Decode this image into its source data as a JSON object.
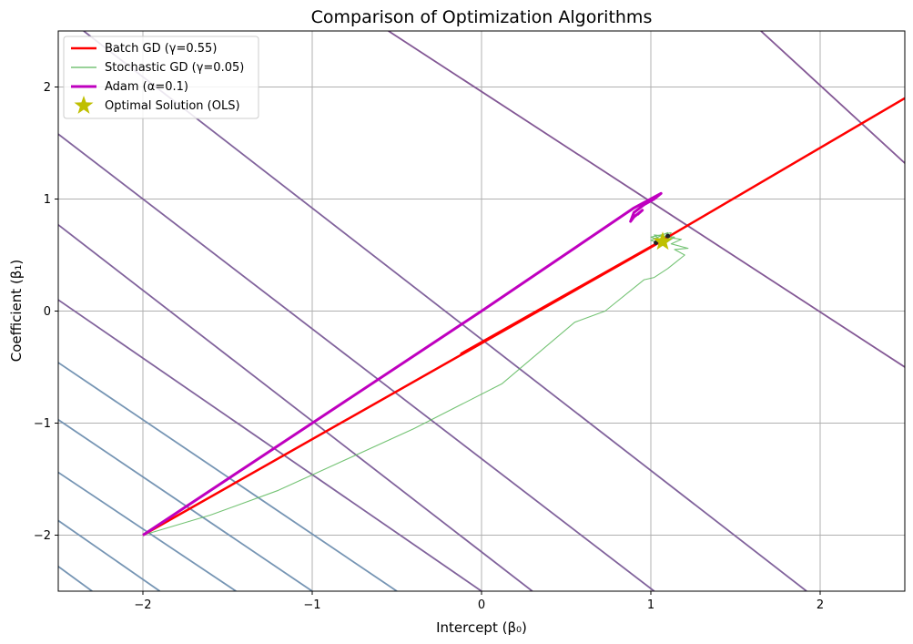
{
  "chart_data": {
    "type": "line",
    "title": "Comparison of Optimization Algorithms",
    "xlabel": "Intercept (β₀)",
    "ylabel": "Coefficient (β₁)",
    "xlim": [
      -2.5,
      2.5
    ],
    "ylim": [
      -2.5,
      2.5
    ],
    "xticks": [
      -2,
      -1,
      0,
      1,
      2
    ],
    "yticks": [
      -2,
      -1,
      0,
      1,
      2
    ],
    "xtick_labels": [
      "−2",
      "−1",
      "0",
      "1",
      "2"
    ],
    "ytick_labels": [
      "−2",
      "−1",
      "0",
      "1",
      "2"
    ],
    "grid": true,
    "legend_position": "upper-left",
    "contours": {
      "colors": [
        "#6f8fb0",
        "#7a5b97",
        "#7c4f8f"
      ],
      "lines": [
        {
          "level": "low-1",
          "points": [
            [
              -2.5,
              -2.28
            ],
            [
              -2.3,
              -2.5
            ]
          ]
        },
        {
          "level": "low-2",
          "points": [
            [
              -2.5,
              -1.87
            ],
            [
              -1.9,
              -2.5
            ]
          ]
        },
        {
          "level": "low-3",
          "points": [
            [
              -2.5,
              -1.44
            ],
            [
              -1.45,
              -2.5
            ]
          ]
        },
        {
          "level": "low-4",
          "points": [
            [
              -2.5,
              -0.97
            ],
            [
              -1.0,
              -2.5
            ]
          ]
        },
        {
          "level": "low-5",
          "points": [
            [
              -2.5,
              -0.46
            ],
            [
              -0.5,
              -2.5
            ]
          ]
        },
        {
          "level": "mid-1",
          "points": [
            [
              -2.5,
              0.1
            ],
            [
              0.0,
              -2.5
            ]
          ]
        },
        {
          "level": "mid-2",
          "points": [
            [
              -2.5,
              0.77
            ],
            [
              0.3,
              -2.5
            ]
          ]
        },
        {
          "level": "mid-3",
          "points": [
            [
              -2.5,
              1.58
            ],
            [
              1.02,
              -2.5
            ]
          ]
        },
        {
          "level": "mid-4",
          "points": [
            [
              -2.35,
              2.5
            ],
            [
              1.92,
              -2.5
            ]
          ]
        },
        {
          "level": "high-1",
          "points": [
            [
              -0.55,
              2.5
            ],
            [
              2.5,
              -0.5
            ]
          ]
        },
        {
          "level": "high-2",
          "points": [
            [
              1.65,
              2.5
            ],
            [
              2.5,
              1.32
            ]
          ]
        }
      ]
    },
    "series": [
      {
        "name": "Batch GD (γ=0.55)",
        "color": "#ff0000",
        "points": [
          [
            -2.0,
            -2.0
          ],
          [
            1.06,
            0.62
          ],
          [
            -0.12,
            -0.38
          ],
          [
            1.1,
            0.66
          ],
          [
            2.5,
            1.9
          ]
        ]
      },
      {
        "name": "Stochastic GD (γ=0.05)",
        "color": "#5cb85c",
        "points": [
          [
            -2.0,
            -2.0
          ],
          [
            -1.6,
            -1.82
          ],
          [
            -1.2,
            -1.6
          ],
          [
            -0.4,
            -1.05
          ],
          [
            0.12,
            -0.65
          ],
          [
            0.55,
            -0.1
          ],
          [
            0.73,
            0.0
          ],
          [
            0.96,
            0.28
          ],
          [
            1.02,
            0.3
          ],
          [
            1.1,
            0.38
          ],
          [
            1.15,
            0.44
          ],
          [
            1.2,
            0.5
          ],
          [
            1.14,
            0.55
          ],
          [
            1.22,
            0.56
          ],
          [
            1.12,
            0.6
          ],
          [
            1.18,
            0.64
          ],
          [
            1.05,
            0.67
          ],
          [
            1.1,
            0.7
          ],
          [
            1.0,
            0.63
          ],
          [
            1.08,
            0.6
          ],
          [
            1.02,
            0.68
          ],
          [
            1.14,
            0.66
          ],
          [
            1.06,
            0.58
          ],
          [
            1.12,
            0.7
          ],
          [
            1.0,
            0.66
          ],
          [
            1.08,
            0.62
          ]
        ]
      },
      {
        "name": "Adam (α=0.1)",
        "color": "#bf00bf",
        "points": [
          [
            -2.0,
            -2.0
          ],
          [
            -1.0,
            -1.0
          ],
          [
            0.0,
            0.0
          ],
          [
            0.9,
            0.92
          ],
          [
            1.06,
            1.05
          ],
          [
            1.02,
            1.0
          ],
          [
            0.96,
            0.95
          ],
          [
            0.9,
            0.88
          ],
          [
            0.88,
            0.8
          ],
          [
            0.9,
            0.84
          ],
          [
            0.95,
            0.9
          ],
          [
            0.92,
            0.86
          ]
        ]
      }
    ],
    "optimum": {
      "name": "Optimal Solution (OLS)",
      "x": 1.07,
      "y": 0.62,
      "color": "#bfbf00"
    }
  }
}
